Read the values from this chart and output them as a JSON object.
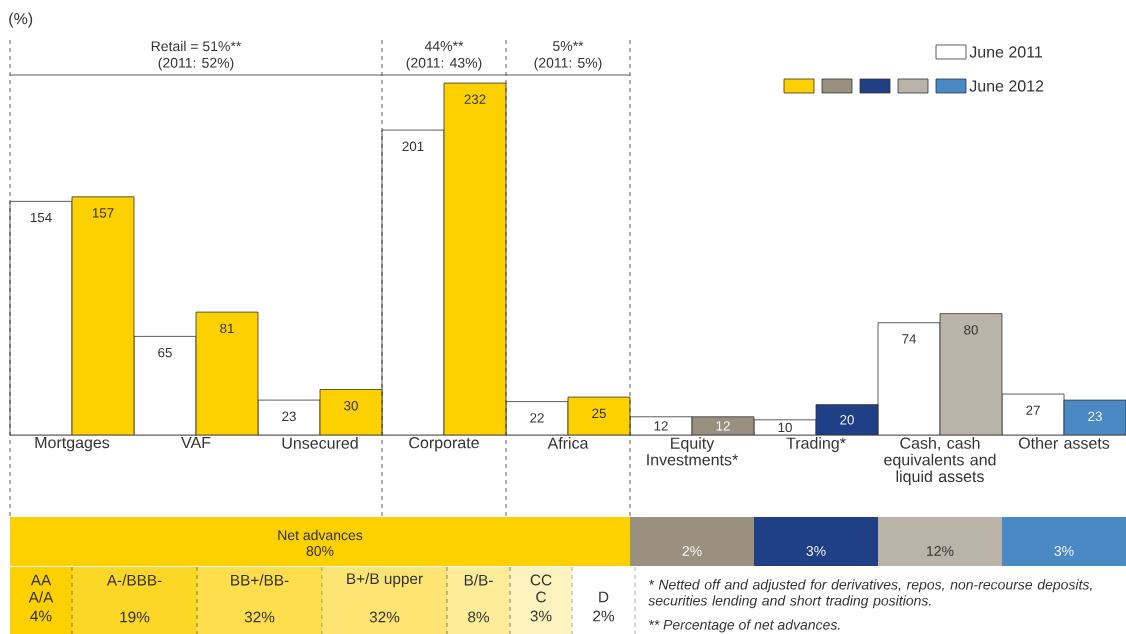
{
  "chart_data": {
    "type": "bar",
    "ylabel": "(%)",
    "categories": [
      "Mortgages",
      "VAF",
      "Unsecured",
      "Corporate",
      "Africa",
      "Equity Investments*",
      "Trading*",
      "Cash, cash equivalents and liquid assets",
      "Other assets"
    ],
    "series": [
      {
        "name": "June 2011",
        "color": "#ffffff",
        "values": [
          154,
          65,
          23,
          201,
          22,
          12,
          10,
          74,
          27
        ]
      },
      {
        "name": "June 2012",
        "colors": [
          "#fdd000",
          "#fdd000",
          "#fdd000",
          "#fdd000",
          "#fdd000",
          "#9a9080",
          "#1f3f87",
          "#bab3a8",
          "#4a89c4"
        ],
        "values": [
          157,
          81,
          30,
          232,
          25,
          12,
          20,
          80,
          23
        ]
      }
    ],
    "data_labels": true,
    "legend": "top right",
    "annotations": [
      "Retail = 51%**",
      "(2011: 52%)",
      "44%**",
      "(2011: 43%)",
      "5%**",
      "(2011: 5%)",
      "Net advances",
      "80%",
      "2%",
      "3%",
      "12%",
      "3%",
      "AA",
      "A/A",
      "4%",
      "A-/BBB-",
      "19%",
      "BB+/BB-",
      "32%",
      "B+/B upper",
      "32%",
      "B/B-",
      "8%",
      "CC",
      "C",
      "3%",
      "D",
      "2%",
      "* Netted off and adjusted for derivatives, repos, non-recourse deposits, securities lending and short trading positions.",
      "** Percentage of net advances."
    ]
  }
}
